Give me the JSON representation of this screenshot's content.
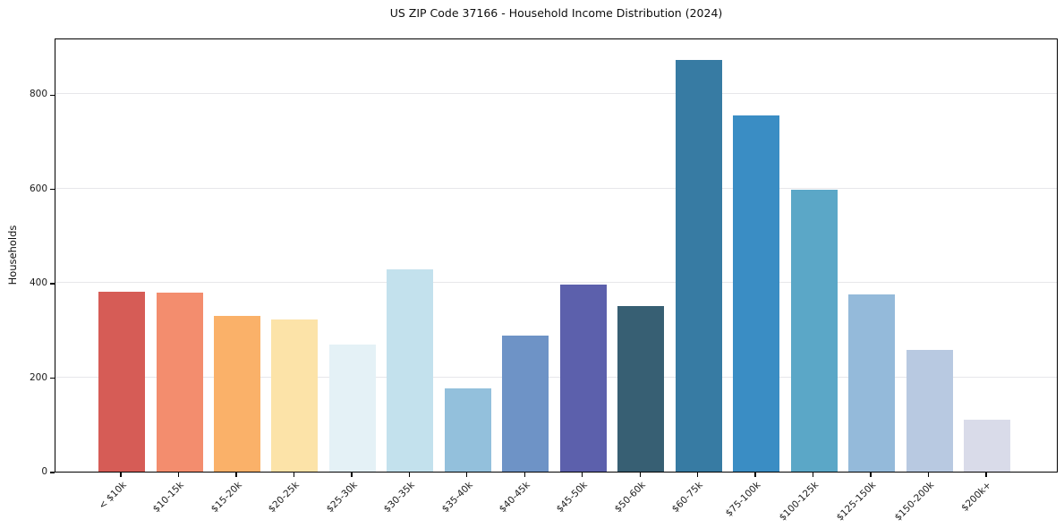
{
  "chart_data": {
    "type": "bar",
    "title": "US ZIP Code 37166 - Household Income Distribution (2024)",
    "xlabel": "",
    "ylabel": "Households",
    "categories": [
      "< $10k",
      "$10-15k",
      "$15-20k",
      "$20-25k",
      "$25-30k",
      "$30-35k",
      "$35-40k",
      "$40-45k",
      "$45-50k",
      "$50-60k",
      "$60-75k",
      "$75-100k",
      "$100-125k",
      "$125-150k",
      "$150-200k",
      "$200k+"
    ],
    "values": [
      381,
      380,
      330,
      322,
      270,
      428,
      177,
      289,
      396,
      351,
      873,
      755,
      598,
      375,
      259,
      111
    ],
    "bar_colors": [
      "#d65c56",
      "#f38d6e",
      "#fab169",
      "#fce3a8",
      "#e4f1f6",
      "#c3e1ed",
      "#93c0dc",
      "#6e93c6",
      "#5c60ac",
      "#375f73",
      "#377ba3",
      "#3a8dc4",
      "#5ba7c7",
      "#94bada",
      "#b8c9e1",
      "#d9dbe9"
    ],
    "ylim": [
      0,
      920
    ],
    "yticks": [
      0,
      200,
      400,
      600,
      800
    ],
    "grid": "horizontal",
    "grid_color": "#e7e7ea",
    "spine_color": "#000000",
    "background_color": "#ffffff",
    "legend": "none",
    "x_tick_rotation": 45
  }
}
